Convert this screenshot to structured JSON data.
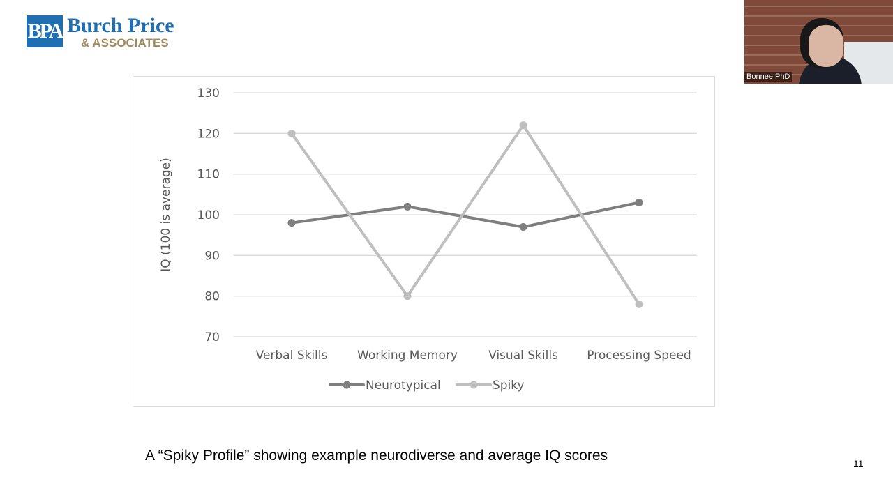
{
  "logo": {
    "mark": "BPA",
    "name": "Burch Price",
    "sub": "& ASSOCIATES"
  },
  "video": {
    "participant_name": "Bonnee PhD"
  },
  "caption": "A “Spiky Profile” showing example neurodiverse and average IQ scores",
  "slide_number": "11",
  "colors": {
    "neurotypical": "#7f7f7f",
    "spiky": "#bfbfbf",
    "gridline": "#d9d9d9",
    "brand_blue": "#1f6fb2",
    "brand_gold": "#a08a5c"
  },
  "chart_data": {
    "type": "line",
    "title": "",
    "xlabel": "",
    "ylabel": "IQ (100 is average)",
    "categories": [
      "Verbal Skills",
      "Working Memory",
      "Visual Skills",
      "Processing Speed"
    ],
    "ylim": [
      70,
      130
    ],
    "yticks": [
      70,
      80,
      90,
      100,
      110,
      120,
      130
    ],
    "grid": true,
    "legend_position": "bottom",
    "series": [
      {
        "name": "Neurotypical",
        "values": [
          98,
          102,
          97,
          103
        ],
        "color": "#7f7f7f"
      },
      {
        "name": "Spiky",
        "values": [
          120,
          80,
          122,
          78
        ],
        "color": "#bfbfbf"
      }
    ]
  }
}
